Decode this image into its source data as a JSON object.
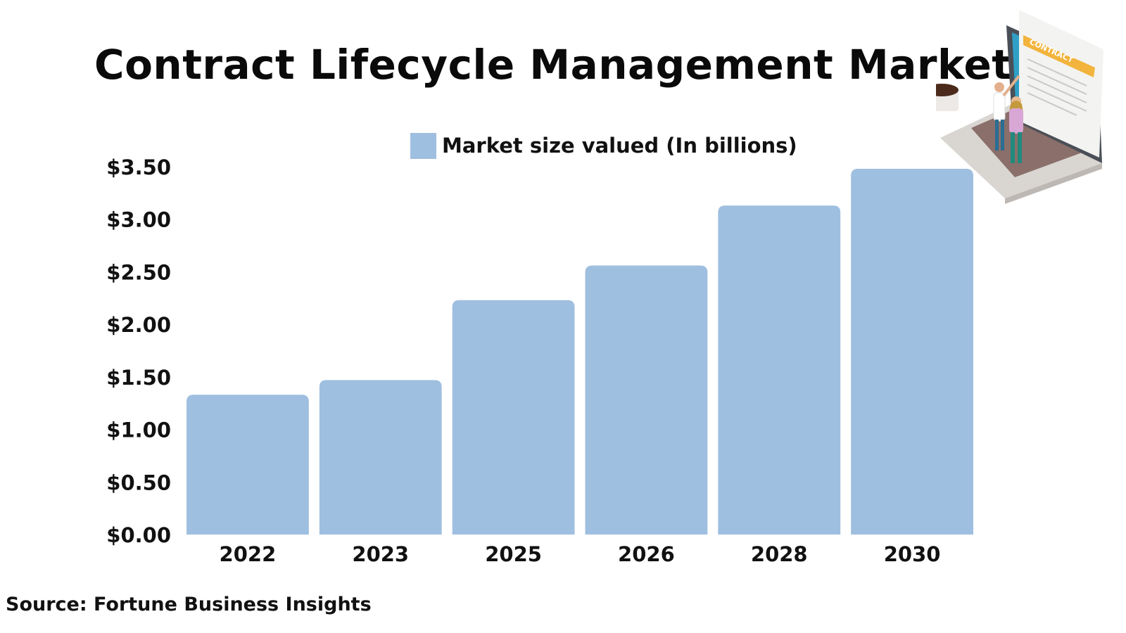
{
  "header": {
    "title": "Contract Lifecycle Management Market"
  },
  "footer": {
    "source": "Source: Fortune Business Insights"
  },
  "illustration": {
    "icon": "contract-laptop-illustration",
    "text": "CONTRACT"
  },
  "colors": {
    "bar": "#9fbfe0",
    "text": "#111111",
    "background": "#ffffff"
  },
  "chart_data": {
    "type": "bar",
    "title": "Contract Lifecycle Management Market",
    "xlabel": "",
    "ylabel": "",
    "categories": [
      "2022",
      "2023",
      "2025",
      "2026",
      "2028",
      "2030"
    ],
    "series": [
      {
        "name": "Market size valued (In billions)",
        "values": [
          1.33,
          1.47,
          2.23,
          2.56,
          3.13,
          3.48
        ]
      }
    ],
    "ylim": [
      0,
      3.5
    ],
    "yticks": [
      0,
      0.5,
      1,
      1.5,
      2,
      2.5,
      3,
      3.5
    ],
    "ytick_labels": [
      "$0.00",
      "$0.50",
      "$1.00",
      "$1.50",
      "$2.00",
      "$2.50",
      "$3.00",
      "$3.50"
    ],
    "grid": false,
    "legend": "top-center"
  }
}
